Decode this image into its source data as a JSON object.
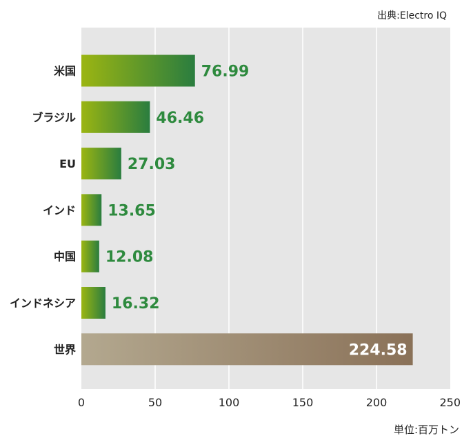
{
  "source_label": "出典:Electro IQ",
  "unit_label": "単位:百万トン",
  "chart_data": {
    "type": "bar",
    "orientation": "horizontal",
    "categories": [
      "米国",
      "ブラジル",
      "EU",
      "インド",
      "中国",
      "インドネシア",
      "世界"
    ],
    "values": [
      76.99,
      46.46,
      27.03,
      13.65,
      12.08,
      16.32,
      224.58
    ],
    "value_labels": [
      "76.99",
      "46.46",
      "27.03",
      "13.65",
      "12.08",
      "16.32",
      "224.58"
    ],
    "xlim": [
      0,
      250
    ],
    "xticks": [
      "0",
      "50",
      "100",
      "150",
      "200",
      "250"
    ],
    "grid": true,
    "colors": {
      "country_bar_start": "#9bb512",
      "country_bar_end": "#2a7d3f",
      "world_bar_start": "#b3a88f",
      "world_bar_end": "#8a7158",
      "plot_background": "#e6e6e6",
      "value_text": "#2e8a3e"
    }
  }
}
